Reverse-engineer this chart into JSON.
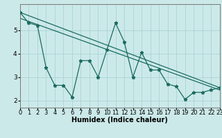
{
  "xlabel": "Humidex (Indice chaleur)",
  "background_color": "#cce9e9",
  "grid_color": "#aad4d4",
  "line_color": "#1a6b5e",
  "xlim": [
    0,
    23
  ],
  "ylim": [
    1.7,
    6.1
  ],
  "yticks": [
    2,
    3,
    4,
    5
  ],
  "xticks": [
    0,
    1,
    2,
    3,
    4,
    5,
    6,
    7,
    8,
    9,
    10,
    11,
    12,
    13,
    14,
    15,
    16,
    17,
    18,
    19,
    20,
    21,
    22,
    23
  ],
  "zigzag_x": [
    0,
    1,
    2,
    3,
    4,
    5,
    6,
    7,
    8,
    9,
    10,
    11,
    12,
    13,
    14,
    15,
    16,
    17,
    18,
    19,
    20,
    21,
    22,
    23
  ],
  "zigzag_y": [
    5.75,
    5.3,
    5.2,
    3.4,
    2.65,
    2.65,
    2.15,
    3.7,
    3.7,
    3.0,
    4.15,
    5.3,
    4.5,
    3.0,
    4.05,
    3.3,
    3.3,
    2.7,
    2.6,
    2.05,
    2.35,
    2.35,
    2.45,
    2.55
  ],
  "trend1_x": [
    0,
    23
  ],
  "trend1_y": [
    5.75,
    2.55
  ],
  "trend2_x": [
    0,
    23
  ],
  "trend2_y": [
    5.5,
    2.45
  ],
  "xlabel_fontsize": 7,
  "tick_fontsize": 6
}
